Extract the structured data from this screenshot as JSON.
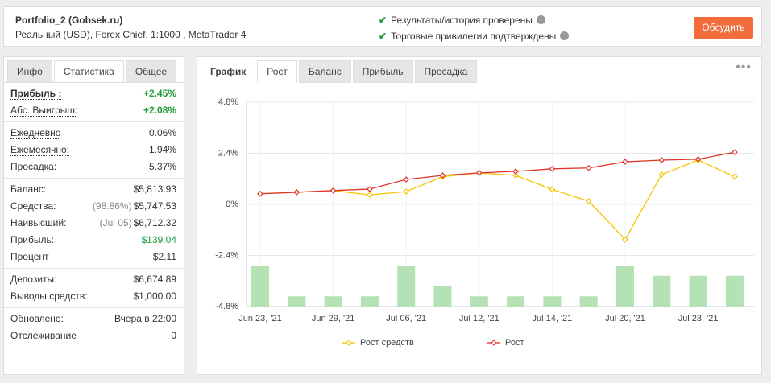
{
  "header": {
    "title": "Portfolio_2 (Gobsek.ru)",
    "subtitle_start": "Реальный (USD), ",
    "broker": "Forex Chief",
    "subtitle_end": ", 1:1000 , MetaTrader 4",
    "checks": [
      "Результаты/история проверены",
      "Торговые привилегии подтверждены"
    ],
    "button": "Обсудить"
  },
  "left_tabs": {
    "items": [
      "Инфо",
      "Статистика",
      "Общее"
    ],
    "active": 1
  },
  "stats": [
    [
      {
        "label": "Прибыль :",
        "value": "+2.45%",
        "color": "#1e9e3a",
        "dotted": true,
        "bold": true
      },
      {
        "label": "Абс. Выигрыш:",
        "value": "+2.08%",
        "color": "#1e9e3a",
        "dotted": true
      }
    ],
    [
      {
        "label": "Ежедневно",
        "value": "0.06%",
        "dotted": true
      },
      {
        "label": "Ежемесячно:",
        "value": "1.94%",
        "dotted": true
      },
      {
        "label": "Просадка:",
        "value": "5.37%"
      }
    ],
    [
      {
        "label": "Баланс:",
        "value": "$5,813.93"
      },
      {
        "label": "Средства:",
        "note": "(98.86%)",
        "value": "$5,747.53"
      },
      {
        "label": "Наивысший:",
        "note": "(Jul 05)",
        "value": "$6,712.32"
      },
      {
        "label": "Прибыль:",
        "value": "$139.04",
        "color": "#1e9e3a"
      },
      {
        "label": "Процент",
        "value": "$2.11"
      }
    ],
    [
      {
        "label": "Депозиты:",
        "value": "$6,674.89"
      },
      {
        "label": "Выводы средств:",
        "value": "$1,000.00"
      }
    ],
    [
      {
        "label": "Обновлено:",
        "value": "Вчера в 22:00"
      },
      {
        "label": "Отслеживание",
        "value": "0"
      }
    ]
  ],
  "right_tabs": {
    "label": "График",
    "items": [
      "Рост",
      "Баланс",
      "Прибыль",
      "Просадка"
    ],
    "active": 0
  },
  "chart_data": {
    "type": "line",
    "categories": [
      "Jun 23, '21",
      null,
      "Jun 29, '21",
      null,
      "Jul 06, '21",
      null,
      "Jul 12, '21",
      null,
      "Jul 14, '21",
      null,
      "Jul 20, '21",
      null,
      "Jul 23, '21",
      null
    ],
    "series": [
      {
        "name": "Рост средств",
        "color": "#f5c400",
        "values": [
          0.5,
          0.57,
          0.65,
          0.45,
          0.6,
          1.3,
          1.48,
          1.36,
          0.7,
          0.15,
          -1.65,
          1.4,
          2.08,
          1.3
        ]
      },
      {
        "name": "Рост",
        "color": "#e0352b",
        "values": [
          0.5,
          0.57,
          0.65,
          0.72,
          1.17,
          1.36,
          1.48,
          1.55,
          1.67,
          1.71,
          2.0,
          2.08,
          2.12,
          2.45
        ]
      }
    ],
    "bars": {
      "color": "#b5e2b5",
      "values": [
        4,
        1,
        1,
        1,
        4,
        2,
        1,
        1,
        1,
        1,
        4,
        3,
        3,
        3
      ]
    },
    "ylim": [
      -4.8,
      4.8
    ],
    "yticks": [
      {
        "value": -4.8,
        "label": "-4.8%"
      },
      {
        "value": -2.4,
        "label": "-2.4%"
      },
      {
        "value": 0,
        "label": "0%"
      },
      {
        "value": 2.4,
        "label": "2.4%"
      },
      {
        "value": 4.8,
        "label": "4.8%"
      }
    ],
    "grid": true
  }
}
